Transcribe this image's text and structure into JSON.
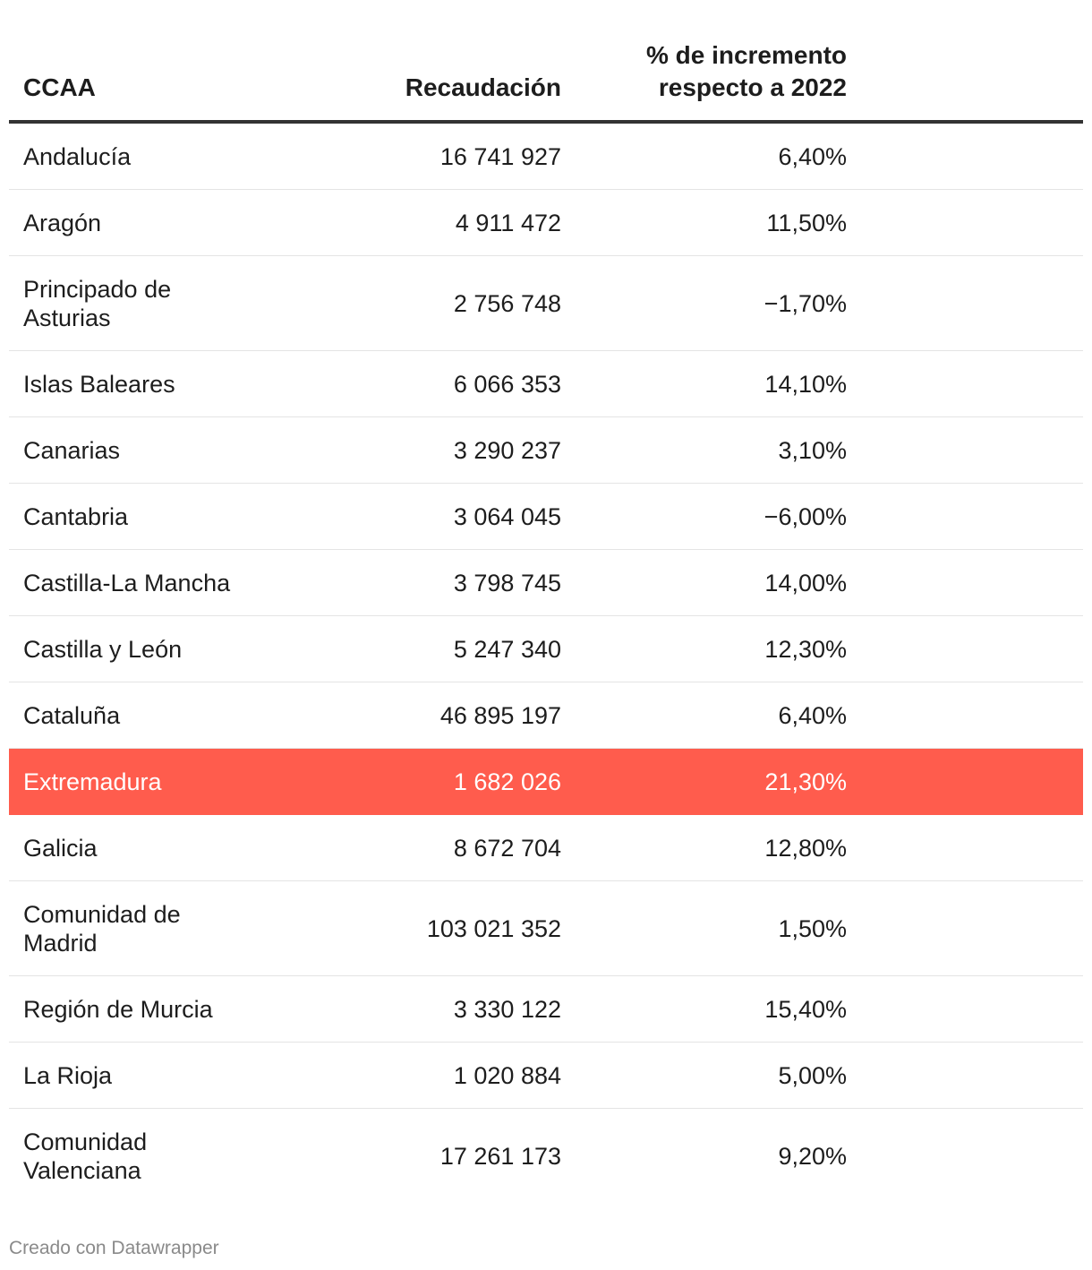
{
  "chart_data": {
    "type": "table",
    "columns": [
      "CCAA",
      "Recaudación",
      "% de incremento respecto a 2022"
    ],
    "rows": [
      {
        "ccaa": "Andalucía",
        "recaudacion": "16 741 927",
        "incremento": "6,40%"
      },
      {
        "ccaa": "Aragón",
        "recaudacion": "4 911 472",
        "incremento": "11,50%"
      },
      {
        "ccaa": "Principado de Asturias",
        "recaudacion": "2 756 748",
        "incremento": "−1,70%"
      },
      {
        "ccaa": "Islas Baleares",
        "recaudacion": "6 066 353",
        "incremento": "14,10%"
      },
      {
        "ccaa": "Canarias",
        "recaudacion": "3 290 237",
        "incremento": "3,10%"
      },
      {
        "ccaa": "Cantabria",
        "recaudacion": "3 064 045",
        "incremento": "−6,00%"
      },
      {
        "ccaa": "Castilla-La Mancha",
        "recaudacion": "3 798 745",
        "incremento": "14,00%"
      },
      {
        "ccaa": "Castilla y León",
        "recaudacion": "5 247 340",
        "incremento": "12,30%"
      },
      {
        "ccaa": "Cataluña",
        "recaudacion": "46 895 197",
        "incremento": "6,40%"
      },
      {
        "ccaa": "Extremadura",
        "recaudacion": "1 682 026",
        "incremento": "21,30%",
        "highlighted": true
      },
      {
        "ccaa": "Galicia",
        "recaudacion": "8 672 704",
        "incremento": "12,80%"
      },
      {
        "ccaa": "Comunidad de Madrid",
        "recaudacion": "103 021 352",
        "incremento": "1,50%"
      },
      {
        "ccaa": "Región de Murcia",
        "recaudacion": "3 330 122",
        "incremento": "15,40%"
      },
      {
        "ccaa": "La Rioja",
        "recaudacion": "1 020 884",
        "incremento": "5,00%"
      },
      {
        "ccaa": "Comunidad Valenciana",
        "recaudacion": "17 261 173",
        "incremento": "9,20%"
      }
    ]
  },
  "colors": {
    "highlight": "#ff5c4d",
    "header_rule": "#333333",
    "row_rule": "#e4e4e4",
    "footer_text": "#8a8a8a"
  },
  "footer": {
    "credit": "Creado con Datawrapper"
  }
}
